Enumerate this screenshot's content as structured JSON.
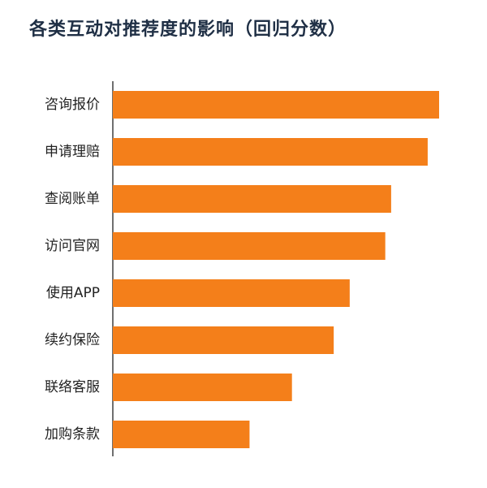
{
  "chart_data": {
    "type": "bar",
    "orientation": "horizontal",
    "title": "各类互动对推荐度的影响（回归分数）",
    "categories": [
      "咨询报价",
      "申请理赔",
      "查阅账单",
      "访问官网",
      "使用APP",
      "续约保险",
      "联络客服",
      "加购条款"
    ],
    "values": [
      100,
      96.5,
      85.3,
      83.5,
      72.6,
      67.7,
      54.9,
      41.9
    ],
    "xlim": [
      0,
      100
    ],
    "grid": false,
    "legend": "none",
    "bar_color": "#f47f1a",
    "axis_color": "#222222"
  }
}
